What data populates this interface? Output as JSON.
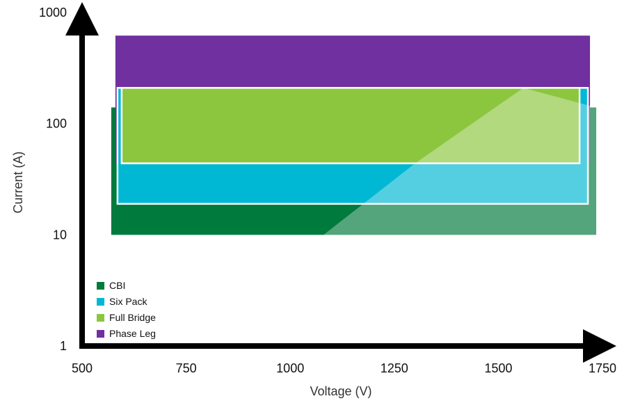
{
  "chart_data": {
    "type": "range-area",
    "title": "",
    "xlabel": "Voltage (V)",
    "ylabel": "Current (A)",
    "x_ticks": [
      "500",
      "750",
      "1000",
      "1250",
      "1500",
      "1750"
    ],
    "y_ticks": [
      "1",
      "10",
      "100",
      "1000"
    ],
    "xlim": [
      500,
      1750
    ],
    "ylim": [
      1,
      1000
    ],
    "y_scale": "log",
    "grid": false,
    "legend_position": "bottom-left",
    "series": [
      {
        "name": "CBI",
        "color": "#007a3d",
        "x_range": [
          570,
          1735
        ],
        "y_range": [
          10,
          140
        ]
      },
      {
        "name": "Six Pack",
        "color": "#00b8d4",
        "x_range": [
          585,
          1715
        ],
        "y_range": [
          19,
          210
        ]
      },
      {
        "name": "Full Bridge",
        "color": "#8cc63f",
        "x_range": [
          595,
          1695
        ],
        "y_range": [
          44,
          210
        ]
      },
      {
        "name": "Phase Leg",
        "color": "#7030a0",
        "x_range": [
          580,
          1720
        ],
        "y_range": [
          44,
          620
        ]
      }
    ]
  }
}
